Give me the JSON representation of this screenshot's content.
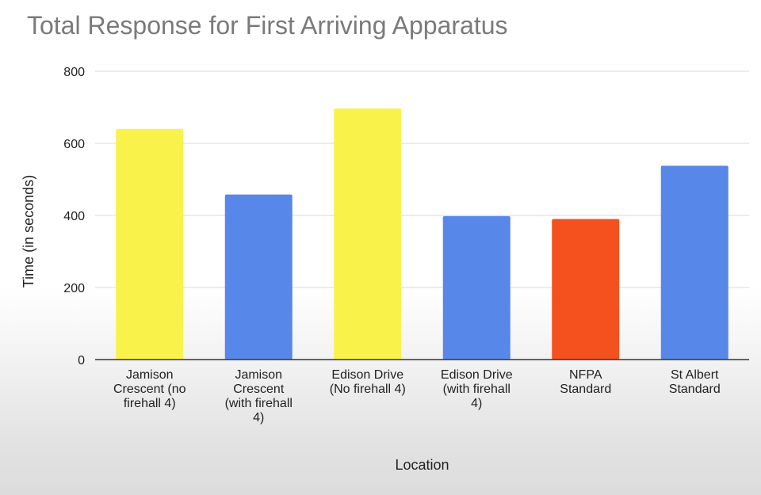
{
  "chart_data": {
    "type": "bar",
    "title": "Total Response for First Arriving Apparatus",
    "xlabel": "Location",
    "ylabel": "Time (in seconds)",
    "ylim": [
      0,
      800
    ],
    "yticks": [
      0,
      200,
      400,
      600,
      800
    ],
    "grid": true,
    "legend": "none",
    "categories": [
      [
        "Jamison",
        "Crescent (no",
        "firehall 4)"
      ],
      [
        "Jamison",
        "Crescent",
        "(with firehall",
        "4)"
      ],
      [
        "Edison Drive",
        "(No firehall 4)"
      ],
      [
        "Edison Drive",
        "(with firehall",
        "4)"
      ],
      [
        "NFPA",
        "Standard"
      ],
      [
        "St Albert",
        "Standard"
      ]
    ],
    "values": [
      640,
      458,
      697,
      398,
      390,
      538
    ],
    "bar_colors": [
      "#f9f24a",
      "#5887ea",
      "#f9f24a",
      "#5887ea",
      "#f4511e",
      "#5887ea"
    ],
    "gridline_color": "#d9d9d9",
    "axis_color": "#333333"
  }
}
